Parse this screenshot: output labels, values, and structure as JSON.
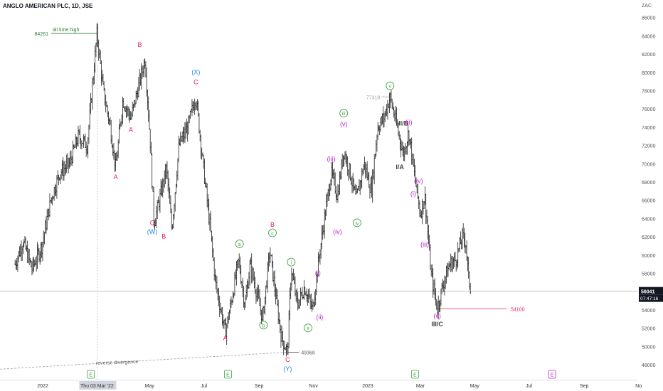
{
  "header": {
    "title": "ANGLO AMERICAN PLC, 1D, JSE"
  },
  "chart_data": {
    "type": "bar",
    "subtype": "ohlc-price-chart",
    "currency": "ZAC",
    "ylim": [
      47000,
      87000
    ],
    "y_ticks": [
      48000,
      50000,
      52000,
      54000,
      56000,
      58000,
      60000,
      62000,
      64000,
      66000,
      68000,
      70000,
      72000,
      74000,
      76000,
      78000,
      80000,
      82000,
      84000,
      86000
    ],
    "x_ticks": [
      "2022",
      "Thu 03 Mar '22",
      "May",
      "Jul",
      "Sep",
      "Nov",
      "2023",
      "Mar",
      "May",
      "Jul",
      "Sep",
      "No"
    ],
    "close_path": [
      [
        "2021-12-01",
        59000
      ],
      [
        "2021-12-10",
        61500
      ],
      [
        "2021-12-20",
        58500
      ],
      [
        "2021-12-31",
        61000
      ],
      [
        "2022-01-10",
        66000
      ],
      [
        "2022-01-20",
        69000
      ],
      [
        "2022-01-31",
        70000
      ],
      [
        "2022-02-10",
        73000
      ],
      [
        "2022-02-20",
        72000
      ],
      [
        "2022-03-03",
        84261
      ],
      [
        "2022-03-10",
        78000
      ],
      [
        "2022-03-18",
        74000
      ],
      [
        "2022-03-24",
        69500
      ],
      [
        "2022-04-01",
        77000
      ],
      [
        "2022-04-10",
        75000
      ],
      [
        "2022-04-20",
        79000
      ],
      [
        "2022-04-26",
        81500
      ],
      [
        "2022-05-02",
        72000
      ],
      [
        "2022-05-06",
        63500
      ],
      [
        "2022-05-12",
        66000
      ],
      [
        "2022-05-20",
        69500
      ],
      [
        "2022-05-26",
        62800
      ],
      [
        "2022-06-03",
        72000
      ],
      [
        "2022-06-13",
        74000
      ],
      [
        "2022-06-22",
        77500
      ],
      [
        "2022-06-30",
        70000
      ],
      [
        "2022-07-08",
        63000
      ],
      [
        "2022-07-14",
        57000
      ],
      [
        "2022-07-25",
        51500
      ],
      [
        "2022-08-01",
        55000
      ],
      [
        "2022-08-09",
        59500
      ],
      [
        "2022-08-16",
        54500
      ],
      [
        "2022-08-22",
        59000
      ],
      [
        "2022-08-29",
        56000
      ],
      [
        "2022-09-05",
        53000
      ],
      [
        "2022-09-13",
        60500
      ],
      [
        "2022-09-19",
        56000
      ],
      [
        "2022-09-26",
        51000
      ],
      [
        "2022-10-03",
        49368
      ],
      [
        "2022-10-07",
        58500
      ],
      [
        "2022-10-14",
        54500
      ],
      [
        "2022-10-22",
        56500
      ],
      [
        "2022-10-31",
        54000
      ],
      [
        "2022-11-07",
        59500
      ],
      [
        "2022-11-14",
        64500
      ],
      [
        "2022-11-21",
        69000
      ],
      [
        "2022-11-28",
        66500
      ],
      [
        "2022-12-05",
        71500
      ],
      [
        "2022-12-12",
        69000
      ],
      [
        "2022-12-19",
        66000
      ],
      [
        "2022-12-28",
        70000
      ],
      [
        "2023-01-05",
        67000
      ],
      [
        "2023-01-12",
        74000
      ],
      [
        "2023-01-19",
        75000
      ],
      [
        "2023-01-26",
        77318
      ],
      [
        "2023-02-03",
        74000
      ],
      [
        "2023-02-10",
        71000
      ],
      [
        "2023-02-16",
        73500
      ],
      [
        "2023-02-22",
        69000
      ],
      [
        "2023-03-01",
        64500
      ],
      [
        "2023-03-06",
        66500
      ],
      [
        "2023-03-13",
        58000
      ],
      [
        "2023-03-20",
        54100
      ],
      [
        "2023-03-27",
        57000
      ],
      [
        "2023-04-03",
        59000
      ],
      [
        "2023-04-10",
        59500
      ],
      [
        "2023-04-17",
        62000
      ],
      [
        "2023-04-21",
        61500
      ],
      [
        "2023-04-24",
        57500
      ],
      [
        "2023-04-27",
        56041
      ]
    ],
    "horizontal_levels": [
      {
        "value": 84261,
        "label": "84261",
        "note": "all time high",
        "color": "#2e7d32"
      },
      {
        "value": 54100,
        "label": "54100",
        "color": "#e91e63"
      },
      {
        "value": 77318,
        "label": "77318",
        "color": "#9e9e9e"
      },
      {
        "value": 49368,
        "label": "49368",
        "color": "#616161"
      }
    ],
    "current_price": {
      "value": 56041,
      "label": "56041",
      "countdown": "07:47:16"
    },
    "annotations": [
      {
        "text": "B",
        "date": "2022-04-20",
        "price": 82800,
        "color": "#e91e63",
        "circled": false
      },
      {
        "text": "A",
        "date": "2022-03-24",
        "price": 68300,
        "color": "#e91e63",
        "circled": false
      },
      {
        "text": "A",
        "date": "2022-04-10",
        "price": 73500,
        "color": "#e91e63",
        "circled": false
      },
      {
        "text": "C",
        "date": "2022-05-04",
        "price": 63300,
        "color": "#e91e63",
        "circled": false
      },
      {
        "text": "(W)",
        "date": "2022-05-04",
        "price": 62300,
        "color": "#1e88e5",
        "circled": false
      },
      {
        "text": "B",
        "date": "2022-05-17",
        "price": 61800,
        "color": "#e91e63",
        "circled": false
      },
      {
        "text": "(X)",
        "date": "2022-06-22",
        "price": 79800,
        "color": "#1e88e5",
        "circled": false
      },
      {
        "text": "C",
        "date": "2022-06-22",
        "price": 78700,
        "color": "#e91e63",
        "circled": false
      },
      {
        "text": "A",
        "date": "2022-07-25",
        "price": 50700,
        "color": "#e91e63",
        "circled": false
      },
      {
        "text": "a",
        "date": "2022-08-10",
        "price": 61000,
        "color": "#43a047",
        "circled": true
      },
      {
        "text": "b",
        "date": "2022-09-06",
        "price": 52100,
        "color": "#43a047",
        "circled": true
      },
      {
        "text": "B",
        "date": "2022-09-16",
        "price": 63100,
        "color": "#e91e63",
        "circled": false
      },
      {
        "text": "c",
        "date": "2022-09-16",
        "price": 62200,
        "color": "#43a047",
        "circled": true
      },
      {
        "text": "C",
        "date": "2022-10-03",
        "price": 48300,
        "color": "#e91e63",
        "circled": false
      },
      {
        "text": "(Y)",
        "date": "2022-10-03",
        "price": 47300,
        "color": "#1e88e5",
        "circled": false
      },
      {
        "text": "i",
        "date": "2022-10-07",
        "price": 59000,
        "color": "#43a047",
        "circled": true
      },
      {
        "text": "ii",
        "date": "2022-10-26",
        "price": 51800,
        "color": "#43a047",
        "circled": true
      },
      {
        "text": "(i)",
        "date": "2022-11-06",
        "price": 57800,
        "color": "#c026d3",
        "circled": false
      },
      {
        "text": "(ii)",
        "date": "2022-11-08",
        "price": 53000,
        "color": "#c026d3",
        "circled": false
      },
      {
        "text": "(iii)",
        "date": "2022-11-21",
        "price": 70300,
        "color": "#c026d3",
        "circled": false
      },
      {
        "text": "(iv)",
        "date": "2022-11-28",
        "price": 62300,
        "color": "#c026d3",
        "circled": false
      },
      {
        "text": "iii",
        "date": "2022-12-05",
        "price": 75300,
        "color": "#43a047",
        "circled": true
      },
      {
        "text": "(v)",
        "date": "2022-12-05",
        "price": 74100,
        "color": "#c026d3",
        "circled": false
      },
      {
        "text": "iv",
        "date": "2022-12-20",
        "price": 63300,
        "color": "#43a047",
        "circled": true
      },
      {
        "text": "v",
        "date": "2023-01-26",
        "price": 78300,
        "color": "#43a047",
        "circled": true
      },
      {
        "text": "II/B",
        "date": "2023-02-10",
        "price": 74200,
        "color": "#424242",
        "circled": false
      },
      {
        "text": "(ii)",
        "date": "2023-02-16",
        "price": 74300,
        "color": "#c026d3",
        "circled": false
      },
      {
        "text": "I/A",
        "date": "2023-02-06",
        "price": 69400,
        "color": "#424242",
        "circled": false
      },
      {
        "text": "(iv)",
        "date": "2023-02-27",
        "price": 67900,
        "color": "#c026d3",
        "circled": false
      },
      {
        "text": "(i)",
        "date": "2023-02-21",
        "price": 66500,
        "color": "#c026d3",
        "circled": false
      },
      {
        "text": "(iii)",
        "date": "2023-03-06",
        "price": 60900,
        "color": "#c026d3",
        "circled": false
      },
      {
        "text": "(v)",
        "date": "2023-03-20",
        "price": 53100,
        "color": "#c026d3",
        "circled": false
      },
      {
        "text": "III/C",
        "date": "2023-03-20",
        "price": 52200,
        "color": "#424242",
        "circled": false
      }
    ],
    "divergence_line": {
      "label": "reverse divergence",
      "from": [
        "2021-12-01",
        47900
      ],
      "to": [
        "2022-10-03",
        49368
      ]
    },
    "earnings_markers": [
      {
        "date": "2022-02-24",
        "text": "E",
        "color": "#43a047"
      },
      {
        "date": "2022-07-28",
        "text": "E",
        "color": "#43a047"
      },
      {
        "date": "2023-02-23",
        "text": "E",
        "color": "#43a047"
      },
      {
        "date": "2023-07-27",
        "text": "E",
        "color": "#c026d3"
      }
    ]
  }
}
